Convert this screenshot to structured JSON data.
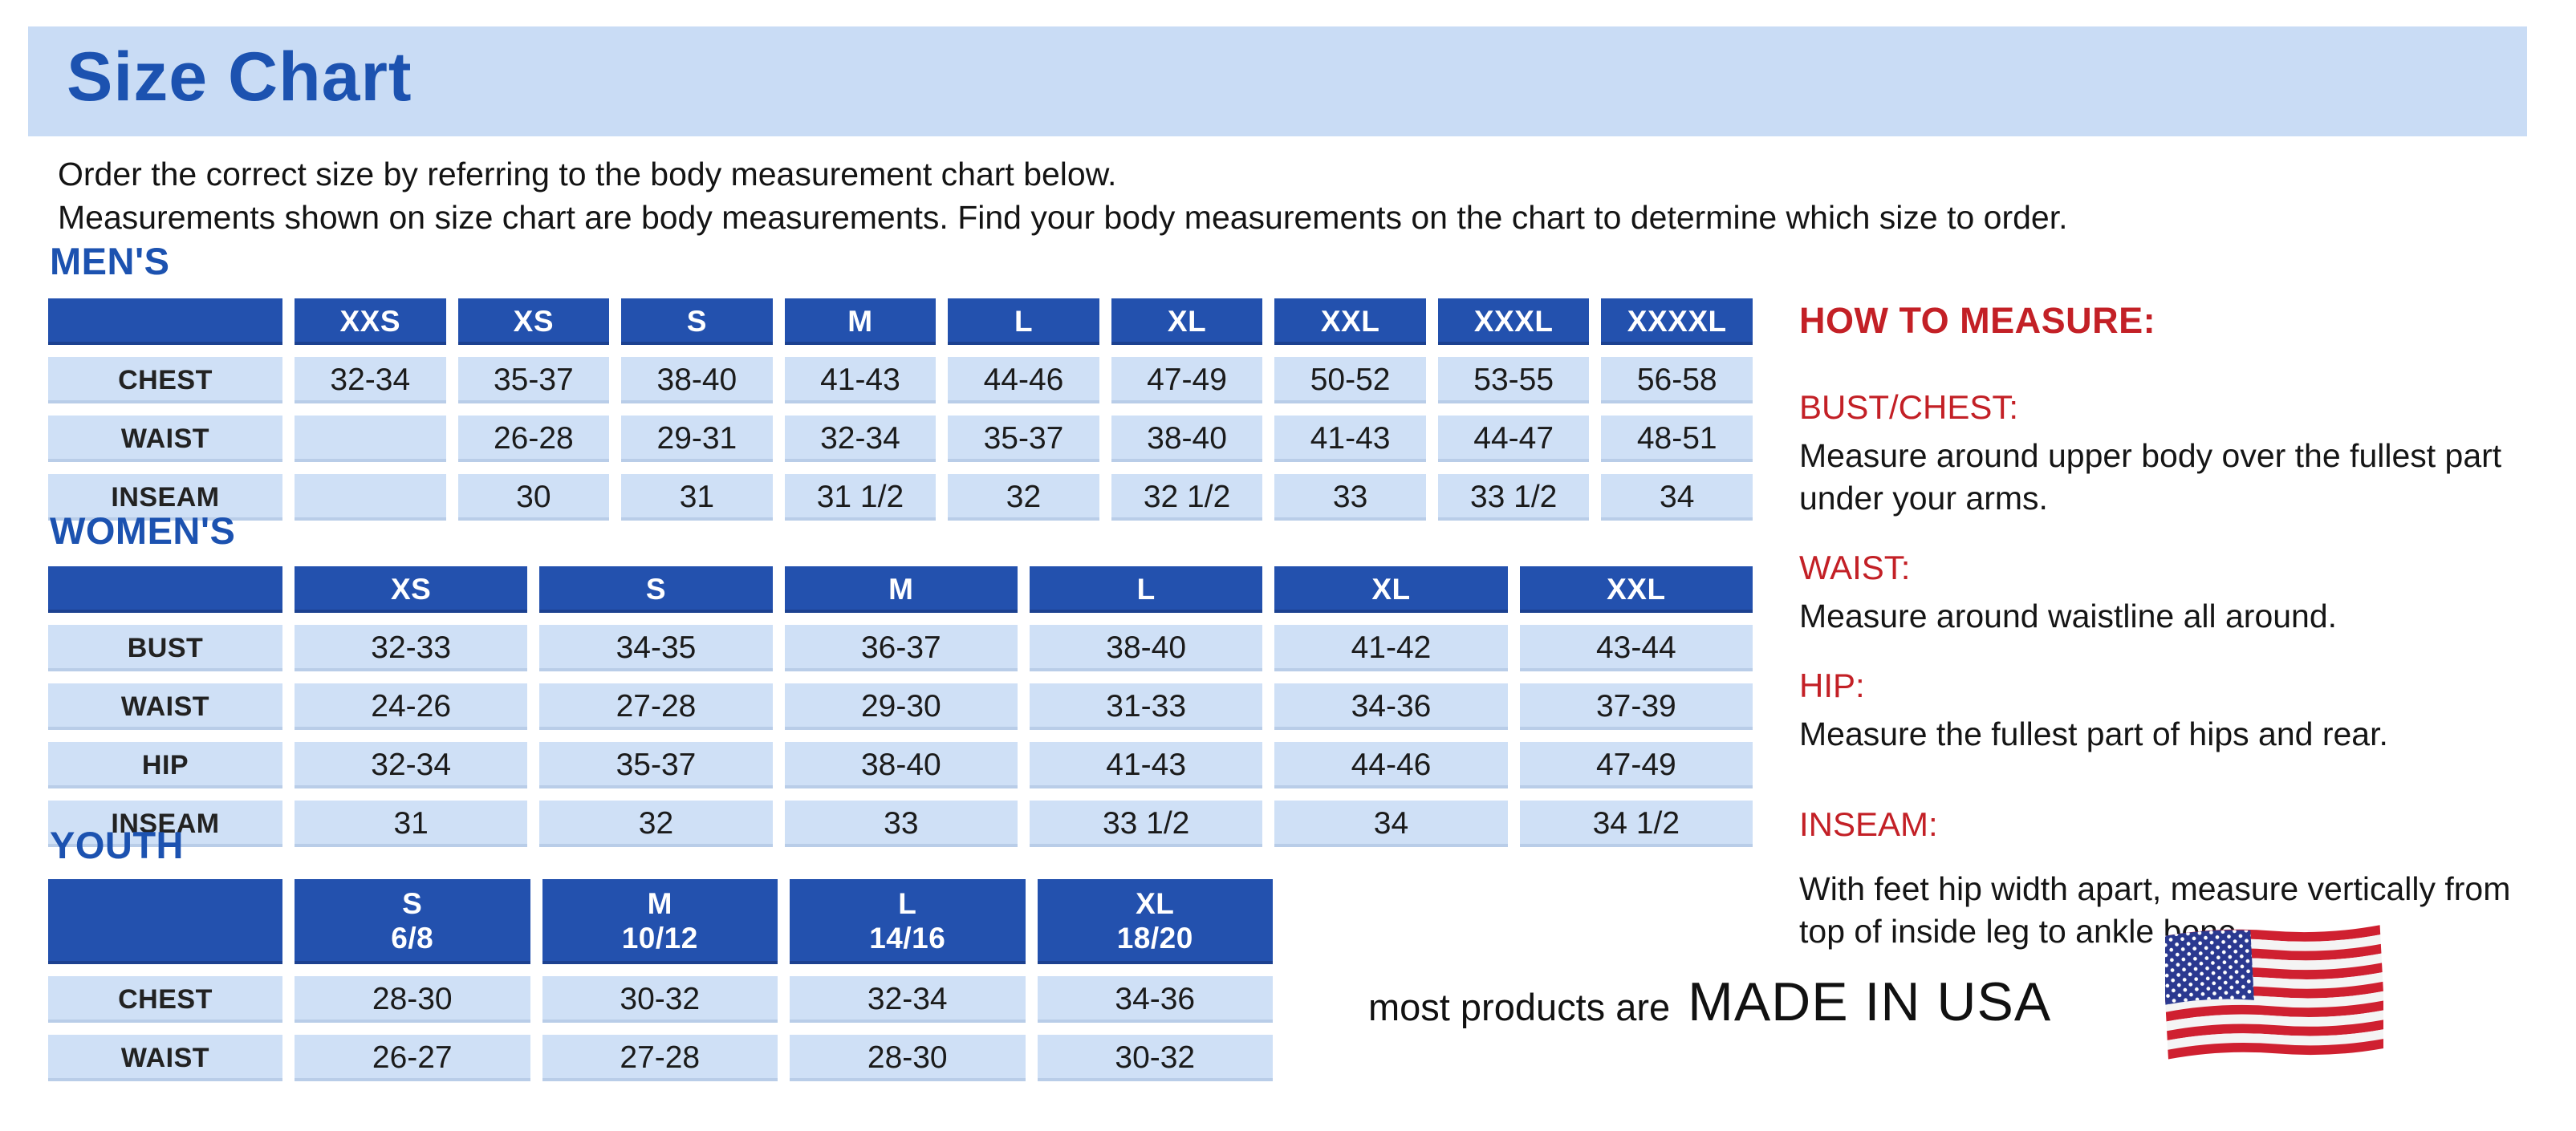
{
  "page": {
    "title": "Size Chart",
    "intro_line1": "Order the correct size by referring to the body measurement chart below.",
    "intro_line2": "Measurements shown on size chart are body measurements.  Find your body measurements on the chart to determine which size to order."
  },
  "colors": {
    "banner_blue": "#c9dcf5",
    "accent_blue": "#1c52b0",
    "header_cell_blue": "#2351ae",
    "light_cell_blue": "#cfe0f6",
    "heading_red": "#c32026"
  },
  "tables": {
    "mens": {
      "section_label": "MEN'S",
      "columns": [
        "",
        "XXS",
        "XS",
        "S",
        "M",
        "L",
        "XL",
        "XXL",
        "XXXL",
        "XXXXL"
      ],
      "rows": [
        {
          "label": "CHEST",
          "values": [
            "32-34",
            "35-37",
            "38-40",
            "41-43",
            "44-46",
            "47-49",
            "50-52",
            "53-55",
            "56-58"
          ]
        },
        {
          "label": "WAIST",
          "values": [
            "",
            "26-28",
            "29-31",
            "32-34",
            "35-37",
            "38-40",
            "41-43",
            "44-47",
            "48-51"
          ]
        },
        {
          "label": "INSEAM",
          "values": [
            "",
            "30",
            "31",
            "31 1/2",
            "32",
            "32 1/2",
            "33",
            "33 1/2",
            "34"
          ]
        }
      ]
    },
    "womens": {
      "section_label": "WOMEN'S",
      "columns": [
        "",
        "XS",
        "S",
        "M",
        "L",
        "XL",
        "XXL"
      ],
      "rows": [
        {
          "label": "BUST",
          "values": [
            "32-33",
            "34-35",
            "36-37",
            "38-40",
            "41-42",
            "43-44"
          ]
        },
        {
          "label": "WAIST",
          "values": [
            "24-26",
            "27-28",
            "29-30",
            "31-33",
            "34-36",
            "37-39"
          ]
        },
        {
          "label": "HIP",
          "values": [
            "32-34",
            "35-37",
            "38-40",
            "41-43",
            "44-46",
            "47-49"
          ]
        },
        {
          "label": "INSEAM",
          "values": [
            "31",
            "32",
            "33",
            "33 1/2",
            "34",
            "34 1/2"
          ]
        }
      ]
    },
    "youth": {
      "section_label": "YOUTH",
      "columns": [
        "",
        {
          "size": "S",
          "age": "6/8"
        },
        {
          "size": "M",
          "age": "10/12"
        },
        {
          "size": "L",
          "age": "14/16"
        },
        {
          "size": "XL",
          "age": "18/20"
        }
      ],
      "rows": [
        {
          "label": "CHEST",
          "values": [
            "28-30",
            "30-32",
            "32-34",
            "34-36"
          ]
        },
        {
          "label": "WAIST",
          "values": [
            "26-27",
            "27-28",
            "28-30",
            "30-32"
          ]
        }
      ]
    }
  },
  "how_to_measure": {
    "title": "HOW TO MEASURE:",
    "items": [
      {
        "heading": "BUST/CHEST:",
        "text": "Measure around upper body over the fullest part under your arms."
      },
      {
        "heading": "WAIST:",
        "text": "Measure around waistline all around."
      },
      {
        "heading": "HIP:",
        "text": "Measure the fullest part of hips and rear."
      },
      {
        "heading": "INSEAM:",
        "text": "With feet hip width apart, measure vertically from top of inside leg to ankle bone."
      }
    ]
  },
  "footer": {
    "prefix": "most products are",
    "made_in": "MADE IN USA",
    "flag_icon": "us-flag-icon"
  }
}
